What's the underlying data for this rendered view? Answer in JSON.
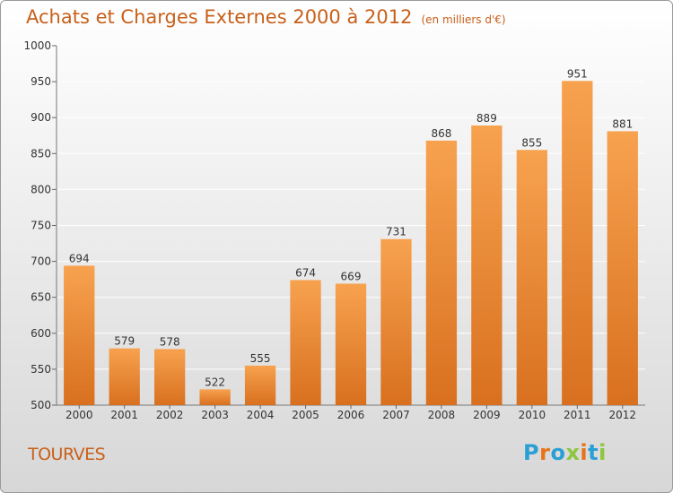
{
  "title": "Achats et Charges Externes 2000 à 2012",
  "subtitle": "(en milliers d'€)",
  "town": "TOURVES",
  "logo": {
    "letters": [
      "P",
      "r",
      "o",
      "x",
      "i",
      "t",
      "i"
    ],
    "colors": [
      "#2a9fd6",
      "#e8731a",
      "#2a9fd6",
      "#8dc63f",
      "#e8731a",
      "#2a9fd6",
      "#8dc63f"
    ]
  },
  "colors": {
    "bar_top": "#f7a24f",
    "bar_bottom": "#d8701f",
    "title": "#c8601a",
    "grid": "#ffffff"
  },
  "chart_data": {
    "type": "bar",
    "title": "Achats et Charges Externes 2000 à 2012",
    "subtitle": "(en milliers d'€)",
    "categories": [
      "2000",
      "2001",
      "2002",
      "2003",
      "2004",
      "2005",
      "2006",
      "2007",
      "2008",
      "2009",
      "2010",
      "2011",
      "2012"
    ],
    "values": [
      694,
      579,
      578,
      522,
      555,
      674,
      669,
      731,
      868,
      889,
      855,
      951,
      881
    ],
    "ylim": [
      500,
      1000
    ],
    "yticks": [
      500,
      550,
      600,
      650,
      700,
      750,
      800,
      850,
      900,
      950,
      1000
    ],
    "grid": true,
    "xlabel": "",
    "ylabel": ""
  }
}
